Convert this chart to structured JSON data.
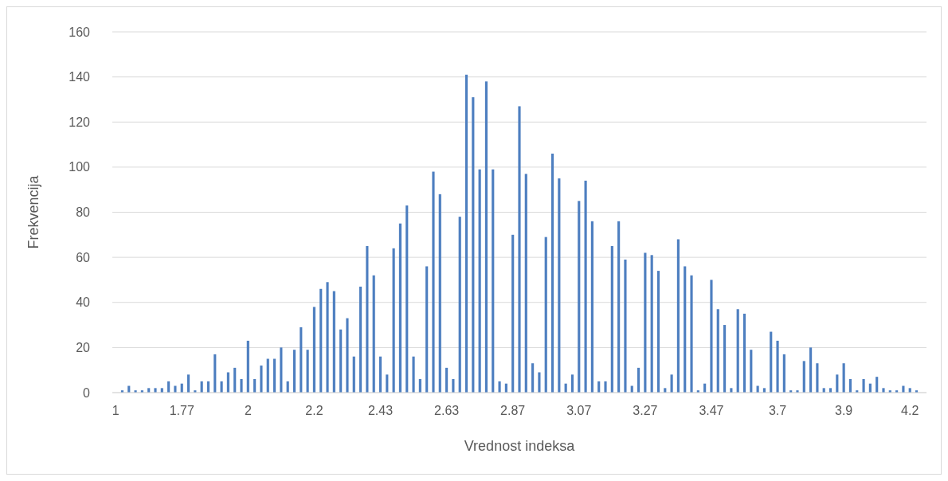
{
  "chart_data": {
    "type": "bar",
    "xlabel": "Vrednost indeksa",
    "ylabel": "Frekvencija",
    "categories": [
      "1",
      null,
      null,
      null,
      null,
      null,
      null,
      null,
      null,
      null,
      "1.77",
      null,
      null,
      null,
      null,
      null,
      null,
      null,
      null,
      null,
      "2",
      null,
      null,
      null,
      null,
      null,
      null,
      null,
      null,
      null,
      "2.2",
      null,
      null,
      null,
      null,
      null,
      null,
      null,
      null,
      null,
      "2.43",
      null,
      null,
      null,
      null,
      null,
      null,
      null,
      null,
      null,
      "2.63",
      null,
      null,
      null,
      null,
      null,
      null,
      null,
      null,
      null,
      "2.87",
      null,
      null,
      null,
      null,
      null,
      null,
      null,
      null,
      null,
      "3.07",
      null,
      null,
      null,
      null,
      null,
      null,
      null,
      null,
      null,
      "3.27",
      null,
      null,
      null,
      null,
      null,
      null,
      null,
      null,
      null,
      "3.47",
      null,
      null,
      null,
      null,
      null,
      null,
      null,
      null,
      null,
      "3.7",
      null,
      null,
      null,
      null,
      null,
      null,
      null,
      null,
      null,
      "3.9",
      null,
      null,
      null,
      null,
      null,
      null,
      null,
      null,
      null,
      "4.2",
      null,
      null
    ],
    "values": [
      0,
      1,
      3,
      1,
      1,
      2,
      2,
      2,
      5,
      3,
      4,
      8,
      1,
      5,
      5,
      17,
      5,
      9,
      11,
      6,
      23,
      6,
      12,
      15,
      15,
      20,
      5,
      19,
      29,
      19,
      38,
      46,
      49,
      45,
      28,
      33,
      16,
      47,
      65,
      52,
      16,
      8,
      64,
      75,
      83,
      16,
      6,
      56,
      98,
      88,
      11,
      6,
      78,
      141,
      131,
      99,
      138,
      99,
      5,
      4,
      70,
      127,
      97,
      13,
      9,
      69,
      106,
      95,
      4,
      8,
      85,
      94,
      76,
      5,
      5,
      65,
      76,
      59,
      3,
      11,
      62,
      61,
      54,
      2,
      8,
      68,
      56,
      52,
      1,
      4,
      50,
      37,
      30,
      2,
      37,
      35,
      19,
      3,
      2,
      27,
      23,
      17,
      1,
      1,
      14,
      20,
      13,
      2,
      2,
      8,
      13,
      6,
      1,
      6,
      4,
      7,
      2,
      1,
      1,
      3,
      2,
      1,
      0
    ],
    "color": "#4e7fc0",
    "ylim": [
      0,
      160
    ],
    "yticks": [
      0,
      20,
      40,
      60,
      80,
      100,
      120,
      140,
      160
    ],
    "grid": "y"
  }
}
